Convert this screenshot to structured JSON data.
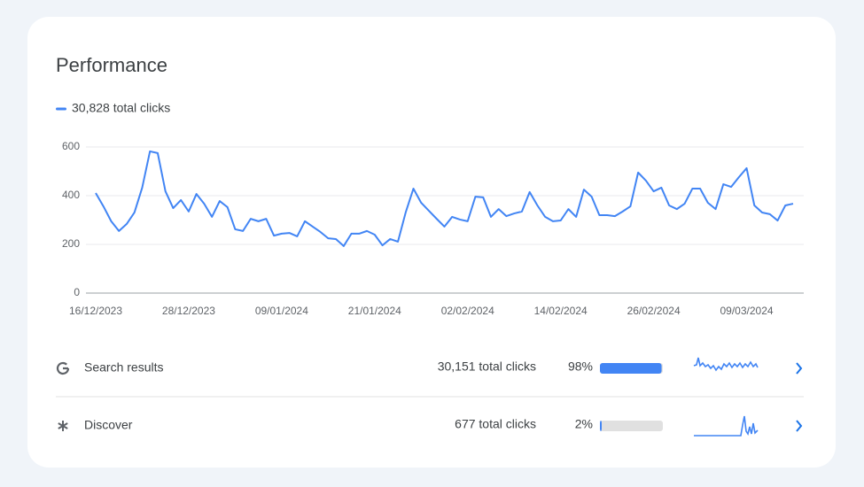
{
  "header": {
    "title": "Performance"
  },
  "chart_data": {
    "type": "line",
    "categories": [
      "16/12/2023",
      null,
      null,
      null,
      null,
      null,
      null,
      null,
      null,
      null,
      null,
      null,
      "28/12/2023",
      null,
      null,
      null,
      null,
      null,
      null,
      null,
      null,
      null,
      null,
      null,
      "09/01/2024",
      null,
      null,
      null,
      null,
      null,
      null,
      null,
      null,
      null,
      null,
      null,
      "21/01/2024",
      null,
      null,
      null,
      null,
      null,
      null,
      null,
      null,
      null,
      null,
      null,
      "02/02/2024",
      null,
      null,
      null,
      null,
      null,
      null,
      null,
      null,
      null,
      null,
      null,
      "14/02/2024",
      null,
      null,
      null,
      null,
      null,
      null,
      null,
      null,
      null,
      null,
      null,
      "26/02/2024",
      null,
      null,
      null,
      null,
      null,
      null,
      null,
      null,
      null,
      null,
      null,
      "09/03/2024",
      null,
      null,
      null,
      null,
      null,
      null
    ],
    "series": [
      {
        "name": "30,828 total clicks",
        "color": "#4285f4",
        "values": [
          411,
          356,
          295,
          255,
          284,
          331,
          433,
          582,
          575,
          418,
          349,
          382,
          335,
          407,
          367,
          313,
          378,
          353,
          262,
          255,
          305,
          295,
          305,
          236,
          244,
          247,
          233,
          295,
          273,
          251,
          225,
          222,
          193,
          244,
          244,
          255,
          240,
          196,
          222,
          211,
          331,
          429,
          371,
          338,
          305,
          273,
          313,
          302,
          295,
          396,
          393,
          313,
          345,
          316,
          327,
          335,
          415,
          360,
          313,
          295,
          298,
          345,
          313,
          425,
          396,
          320,
          320,
          316,
          335,
          356,
          495,
          462,
          418,
          433,
          360,
          345,
          367,
          429,
          429,
          371,
          345,
          447,
          436,
          476,
          513,
          360,
          331,
          324,
          298,
          360,
          367
        ]
      }
    ],
    "ylim": [
      0,
      600
    ],
    "yticks": [
      0,
      200,
      400,
      600
    ],
    "grid": true
  },
  "rows": [
    {
      "label": "Search results",
      "clicks": "30,151 total clicks",
      "share": {
        "value": 98,
        "label": "98%"
      }
    },
    {
      "label": "Discover",
      "clicks": "677 total clicks",
      "share": {
        "value": 2,
        "label": "2%"
      }
    }
  ]
}
